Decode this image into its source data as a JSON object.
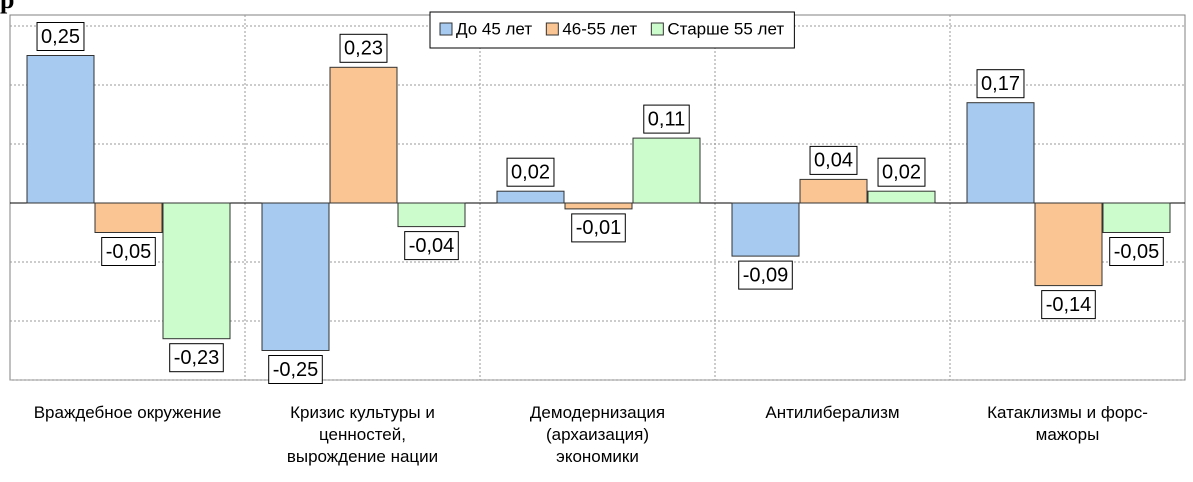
{
  "chart_data": {
    "type": "bar",
    "title": "р",
    "categories": [
      "Враждебное окружение",
      "Кризис культуры и ценностей, вырождение нации",
      "Демодернизация (архаизация) экономики",
      "Антилиберализм",
      "Катаклизмы и форс-мажоры"
    ],
    "series": [
      {
        "name": "До 45 лет",
        "color": "#a6caf0",
        "values": [
          0.25,
          -0.25,
          0.02,
          -0.09,
          0.17
        ],
        "value_labels": [
          "0,25",
          "-0,25",
          "0,02",
          "-0,09",
          "0,17"
        ]
      },
      {
        "name": "46-55 лет",
        "color": "#fac592",
        "values": [
          -0.05,
          0.23,
          -0.01,
          0.04,
          -0.14
        ],
        "value_labels": [
          "-0,05",
          "0,23",
          "-0,01",
          "0,04",
          "-0,14"
        ]
      },
      {
        "name": "Старше 55 лет",
        "color": "#ccfccc",
        "values": [
          -0.23,
          -0.04,
          0.11,
          0.02,
          -0.05
        ],
        "value_labels": [
          "-0,23",
          "-0,04",
          "0,11",
          "0,02",
          "-0,05"
        ]
      }
    ],
    "ylim": [
      -0.3,
      0.3
    ],
    "yticks": [
      -0.3,
      -0.2,
      -0.1,
      0,
      0.1,
      0.2,
      0.3
    ],
    "grid": true,
    "legend": "top"
  }
}
